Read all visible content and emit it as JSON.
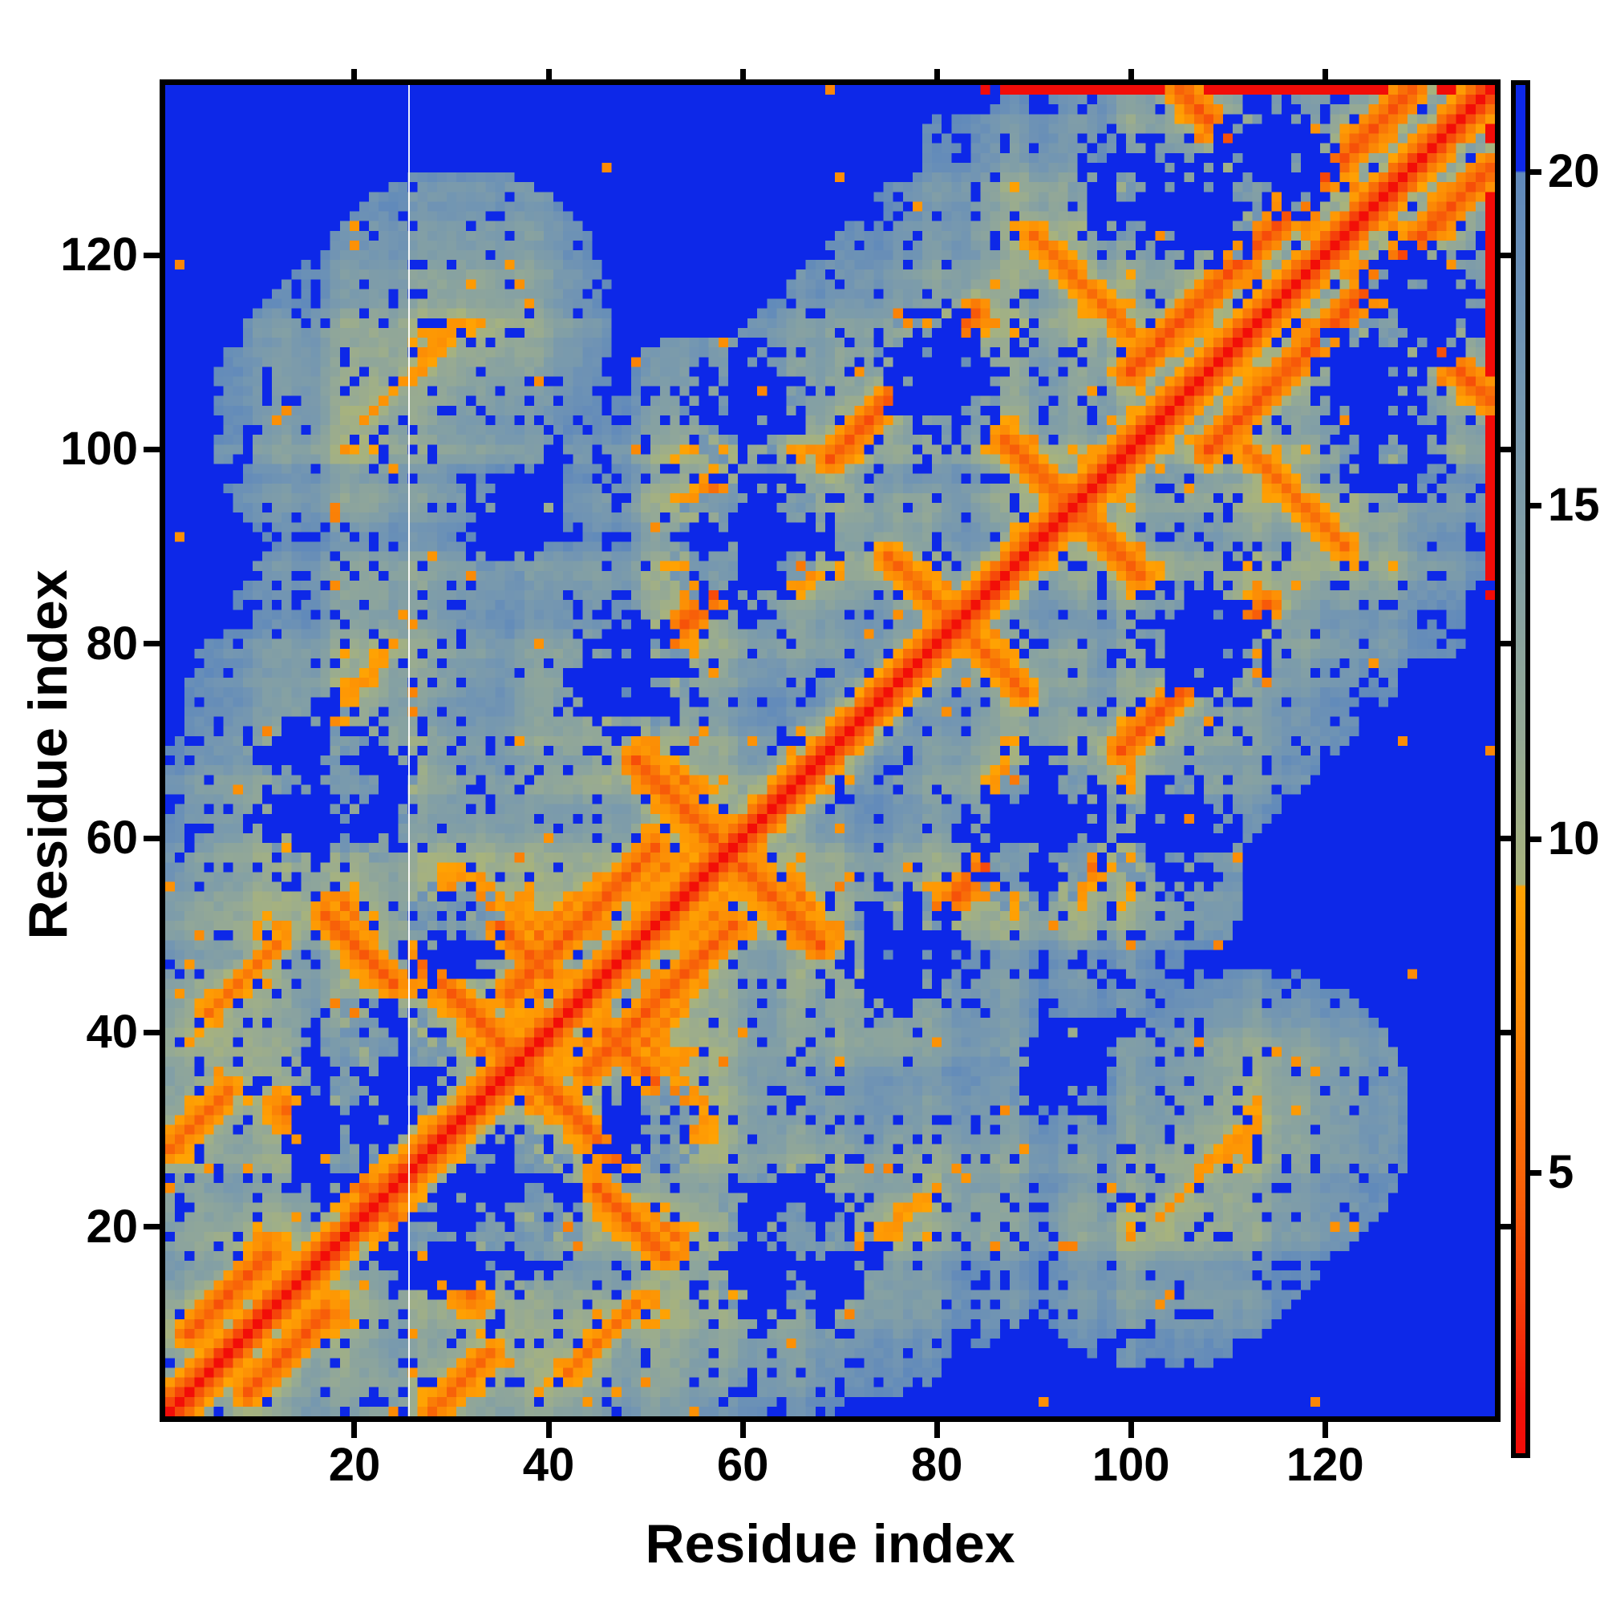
{
  "figure": {
    "background": "#ffffff",
    "x_axis": {
      "label": "Residue index",
      "ticks": [
        20,
        40,
        60,
        80,
        100,
        120
      ],
      "range": [
        1,
        137
      ]
    },
    "y_axis": {
      "label": "Residue index",
      "ticks": [
        20,
        40,
        60,
        80,
        100,
        120
      ],
      "range": [
        1,
        137
      ]
    },
    "colorbar": {
      "ticks": [
        5,
        10,
        15,
        20
      ],
      "range": [
        0.8,
        21.3
      ]
    }
  },
  "chart_data": {
    "type": "heatmap",
    "title": "",
    "xlabel": "Residue index",
    "ylabel": "Residue index",
    "n_residues": 137,
    "x_tick_labels": [
      "20",
      "40",
      "60",
      "80",
      "100",
      "120"
    ],
    "y_tick_labels": [
      "20",
      "40",
      "60",
      "80",
      "100",
      "120"
    ],
    "colorbar_tick_labels": [
      "5",
      "10",
      "15",
      "20"
    ],
    "value_range": [
      0.8,
      21.3
    ],
    "grid": false,
    "legend_position": "right-colorbar",
    "colormap_stops": [
      {
        "v": 21.4,
        "c": "#0d28e8"
      },
      {
        "v": 20.005,
        "c": "#0d28e8"
      },
      {
        "v": 20.0,
        "c": "#6089bb"
      },
      {
        "v": 17.0,
        "c": "#7396b2"
      },
      {
        "v": 14.0,
        "c": "#84a0a4"
      },
      {
        "v": 11.5,
        "c": "#95a995"
      },
      {
        "v": 10.0,
        "c": "#a2b084"
      },
      {
        "v": 9.305,
        "c": "#a8b37c"
      },
      {
        "v": 9.3,
        "c": "#ffa303"
      },
      {
        "v": 7.5,
        "c": "#fc8d05"
      },
      {
        "v": 6.0,
        "c": "#f97507"
      },
      {
        "v": 4.5,
        "c": "#f75c09"
      },
      {
        "v": 3.0,
        "c": "#f53c0a"
      },
      {
        "v": 1.5,
        "c": "#f21208"
      },
      {
        "v": 0.7,
        "c": "#f20c08"
      }
    ],
    "diagonal": {
      "d0": 1.0,
      "slope": 2.6
    },
    "contact_features": [
      [
        3,
        9,
        11,
        17,
        4.4
      ],
      [
        1,
        28,
        7,
        34,
        5.2
      ],
      [
        13,
        32,
        22,
        23,
        4.6
      ],
      [
        27,
        47,
        38,
        36,
        4.6
      ],
      [
        36,
        44,
        51,
        59,
        4.4
      ],
      [
        49,
        68,
        59,
        58,
        4.4
      ],
      [
        46,
        74,
        61,
        89,
        4.2
      ],
      [
        69,
        99,
        84,
        114,
        4.2
      ],
      [
        57,
        96,
        66,
        87,
        5.0
      ],
      [
        87,
        101,
        96,
        92,
        4.8
      ],
      [
        100,
        108,
        129,
        137,
        4.0
      ],
      [
        105,
        137,
        118,
        124,
        4.4
      ],
      [
        21,
        103,
        31,
        113,
        8.3
      ],
      [
        75,
        89,
        84,
        80,
        5.0
      ],
      [
        31,
        55,
        40,
        46,
        4.8
      ],
      [
        5,
        42,
        12,
        49,
        6.0
      ],
      [
        14,
        60,
        22,
        68,
        7.5
      ],
      [
        90,
        122,
        100,
        112,
        5.5
      ],
      [
        18,
        72,
        24,
        80,
        7.8
      ],
      [
        17,
        52,
        24,
        45,
        4.6
      ]
    ],
    "voids": [
      [
        20,
        28,
        7
      ],
      [
        35,
        22,
        8
      ],
      [
        50,
        30,
        5
      ],
      [
        65,
        18,
        8
      ],
      [
        77,
        48,
        6
      ],
      [
        90,
        60,
        7
      ],
      [
        60,
        105,
        6
      ],
      [
        80,
        108,
        6
      ],
      [
        36,
        92,
        5
      ],
      [
        115,
        130,
        6
      ],
      [
        124,
        108,
        5
      ],
      [
        64,
        92,
        5
      ],
      [
        100,
        126,
        6
      ]
    ],
    "noise": {
      "seed": 1337,
      "cell_jitter": 2.0,
      "stripe_amp": 1.7,
      "blue_speckle_p": 0.1,
      "orange_speckle_p": 0.012,
      "steel_in_blue_threshold": -1.05
    },
    "white_line_after_col": 25
  }
}
